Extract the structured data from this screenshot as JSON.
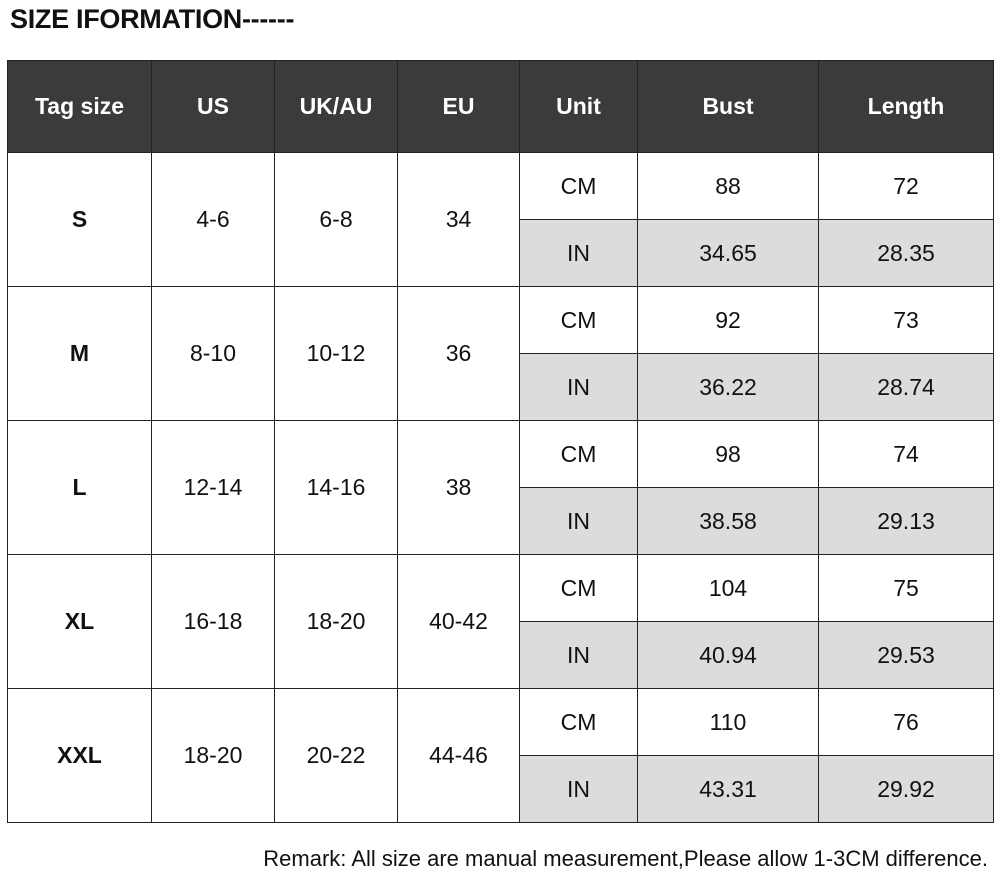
{
  "header": {
    "title": "SIZE IFORMATION------"
  },
  "table": {
    "columns": [
      "Tag size",
      "US",
      "UK/AU",
      "EU",
      "Unit",
      "Bust",
      "Length"
    ],
    "rows": [
      {
        "tag": "S",
        "us": "4-6",
        "uk": "6-8",
        "eu": "34",
        "units": [
          {
            "unit": "CM",
            "bust": "88",
            "length": "72"
          },
          {
            "unit": "IN",
            "bust": "34.65",
            "length": "28.35"
          }
        ]
      },
      {
        "tag": "M",
        "us": "8-10",
        "uk": "10-12",
        "eu": "36",
        "units": [
          {
            "unit": "CM",
            "bust": "92",
            "length": "73"
          },
          {
            "unit": "IN",
            "bust": "36.22",
            "length": "28.74"
          }
        ]
      },
      {
        "tag": "L",
        "us": "12-14",
        "uk": "14-16",
        "eu": "38",
        "units": [
          {
            "unit": "CM",
            "bust": "98",
            "length": "74"
          },
          {
            "unit": "IN",
            "bust": "38.58",
            "length": "29.13"
          }
        ]
      },
      {
        "tag": "XL",
        "us": "16-18",
        "uk": "18-20",
        "eu": "40-42",
        "units": [
          {
            "unit": "CM",
            "bust": "104",
            "length": "75"
          },
          {
            "unit": "IN",
            "bust": "40.94",
            "length": "29.53"
          }
        ]
      },
      {
        "tag": "XXL",
        "us": "18-20",
        "uk": "20-22",
        "eu": "44-46",
        "units": [
          {
            "unit": "CM",
            "bust": "110",
            "length": "76"
          },
          {
            "unit": "IN",
            "bust": "43.31",
            "length": "29.92"
          }
        ]
      }
    ]
  },
  "remark": "Remark: All size are manual measurement,Please allow 1-3CM difference."
}
